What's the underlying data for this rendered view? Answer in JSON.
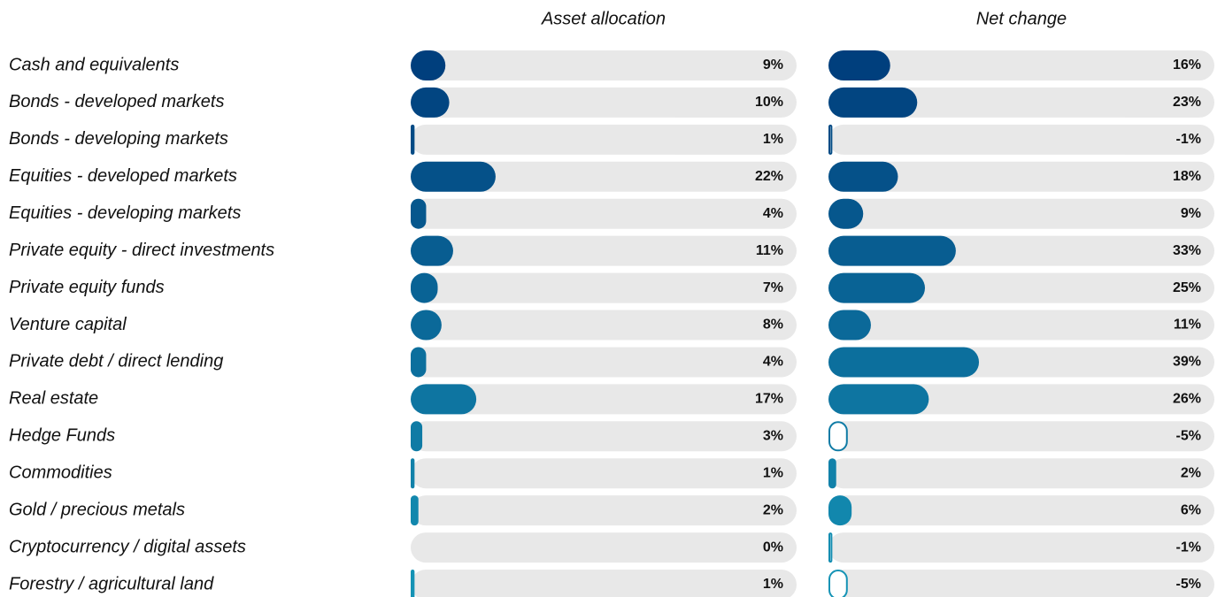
{
  "chart_data": {
    "type": "bar",
    "orientation": "horizontal",
    "categories": [
      "Cash and equivalents",
      "Bonds - developed markets",
      "Bonds - developing markets",
      "Equities - developed markets",
      "Equities - developing markets",
      "Private equity - direct investments",
      "Private equity funds",
      "Venture capital",
      "Private debt / direct lending",
      "Real estate",
      "Hedge Funds",
      "Commodities",
      "Gold / precious metals",
      "Cryptocurrency / digital assets",
      "Forestry / agricultural land"
    ],
    "colors": [
      "#003f7d",
      "#024581",
      "#034b85",
      "#055189",
      "#06578d",
      "#085d91",
      "#096395",
      "#0b6999",
      "#0c6f9d",
      "#0e75a1",
      "#0f7ba5",
      "#1181a9",
      "#1287ad",
      "#148db1",
      "#1593b5"
    ],
    "xlim": [
      0,
      100
    ],
    "series": [
      {
        "name": "Asset allocation",
        "values": [
          9,
          10,
          1,
          22,
          4,
          11,
          7,
          8,
          4,
          17,
          3,
          1,
          2,
          0,
          1
        ],
        "value_labels": [
          "9%",
          "10%",
          "1%",
          "22%",
          "4%",
          "11%",
          "7%",
          "8%",
          "4%",
          "17%",
          "3%",
          "1%",
          "2%",
          "0%",
          "1%"
        ]
      },
      {
        "name": "Net change",
        "values": [
          16,
          23,
          -1,
          18,
          9,
          33,
          25,
          11,
          39,
          26,
          -5,
          2,
          6,
          -1,
          -5
        ],
        "value_labels": [
          "16%",
          "23%",
          "-1%",
          "18%",
          "9%",
          "33%",
          "25%",
          "11%",
          "39%",
          "26%",
          "-5%",
          "2%",
          "6%",
          "-1%",
          "-5%"
        ]
      }
    ]
  }
}
